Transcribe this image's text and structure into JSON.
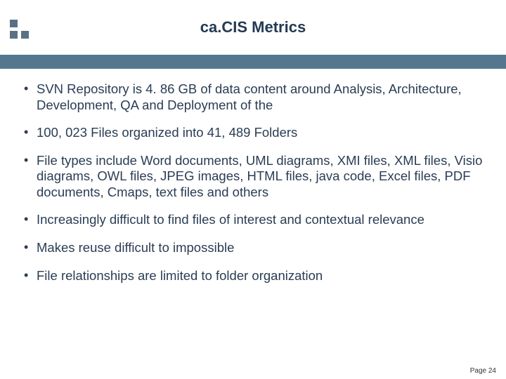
{
  "header": {
    "title": "ca.CIS Metrics",
    "header_bg": "#ffffff",
    "band_color": "#55768f",
    "title_color": "#233a52",
    "title_fontsize": 22,
    "title_fontweight": "bold",
    "logo_square_color": "#5a7184"
  },
  "bullets": [
    "SVN Repository is 4. 86 GB of data content around Analysis, Architecture, Development, QA and Deployment of the",
    "100, 023 Files organized into 41, 489 Folders",
    "File types include Word documents, UML diagrams, XMI files, XML files, Visio diagrams, OWL files, JPEG images, HTML files, java code, Excel files, PDF documents, Cmaps, text files and others",
    "Increasingly difficult to find files of interest and contextual relevance",
    "Makes reuse difficult to impossible",
    "File relationships are limited to folder organization"
  ],
  "body_text_color": "#2a3d54",
  "body_fontsize": 18.5,
  "background_color": "#ffffff",
  "footer": {
    "label": "Page 24"
  }
}
